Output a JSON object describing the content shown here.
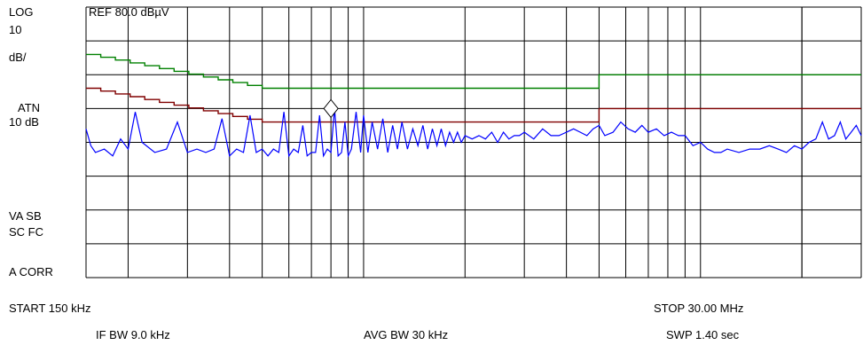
{
  "header": {
    "ref_level": "REF 80.0 dBµV"
  },
  "left_panel": {
    "scale_line1": "LOG",
    "scale_line2": "10",
    "scale_line3": "dB/",
    "atten_line1": "ATN",
    "atten_line2": "10 dB",
    "va_sb": "VA SB",
    "sc_fc": "SC FC",
    "a_corr": "A CORR"
  },
  "footer": {
    "start": "START 150 kHz",
    "stop": "STOP 30.00 MHz",
    "if_bw": "IF BW 9.0 kHz",
    "avg_bw": "AVG BW 30 kHz",
    "sweep": "SWP 1.40 sec"
  },
  "colors": {
    "trace": "#0000ff",
    "limit_upper": "#008000",
    "limit_lower": "#800000",
    "grid": "#000000"
  },
  "chart_data": {
    "type": "line",
    "title": "",
    "x_scale": "log",
    "x_unit": "MHz",
    "xlim": [
      0.15,
      30.0
    ],
    "y_unit": "dBµV",
    "ylim": [
      0,
      80
    ],
    "y_per_division": 10,
    "grid": true,
    "series": [
      {
        "role": "trace",
        "x": [
          0.15,
          0.155,
          0.16,
          0.17,
          0.18,
          0.19,
          0.2,
          0.21,
          0.22,
          0.24,
          0.26,
          0.28,
          0.3,
          0.32,
          0.34,
          0.36,
          0.38,
          0.4,
          0.42,
          0.44,
          0.46,
          0.48,
          0.5,
          0.52,
          0.54,
          0.56,
          0.58,
          0.6,
          0.62,
          0.64,
          0.66,
          0.68,
          0.7,
          0.72,
          0.74,
          0.76,
          0.78,
          0.8,
          0.82,
          0.84,
          0.86,
          0.88,
          0.9,
          0.92,
          0.95,
          0.98,
          1.0,
          1.03,
          1.06,
          1.1,
          1.14,
          1.18,
          1.22,
          1.26,
          1.3,
          1.35,
          1.4,
          1.45,
          1.5,
          1.55,
          1.6,
          1.65,
          1.7,
          1.75,
          1.8,
          1.85,
          1.9,
          1.95,
          2.0,
          2.1,
          2.2,
          2.3,
          2.4,
          2.5,
          2.6,
          2.7,
          2.8,
          2.9,
          3.0,
          3.2,
          3.4,
          3.6,
          3.8,
          4.0,
          4.2,
          4.4,
          4.6,
          4.8,
          5.0,
          5.2,
          5.5,
          5.8,
          6.1,
          6.4,
          6.7,
          7.0,
          7.4,
          7.8,
          8.2,
          8.6,
          9.0,
          9.5,
          10.0,
          10.5,
          11.0,
          11.5,
          12.0,
          13.0,
          14.0,
          15.0,
          16.0,
          17.0,
          18.0,
          19.0,
          20.0,
          21.0,
          22.0,
          23.0,
          24.0,
          25.0,
          26.0,
          27.0,
          28.0,
          29.0,
          30.0
        ],
        "y": [
          44,
          39,
          37,
          38,
          36,
          41,
          38,
          49,
          40,
          37,
          38,
          46,
          37,
          38,
          37,
          38,
          47,
          36,
          38,
          37,
          48,
          37,
          38,
          36,
          38,
          37,
          49,
          36,
          38,
          37,
          45,
          36,
          37,
          37,
          48,
          36,
          38,
          37,
          50,
          36,
          37,
          46,
          36,
          38,
          49,
          37,
          48,
          37,
          46,
          38,
          47,
          37,
          45,
          38,
          46,
          38,
          44,
          39,
          45,
          38,
          44,
          39,
          44,
          39,
          43,
          40,
          43,
          40,
          42,
          41,
          42,
          41,
          43,
          40,
          43,
          41,
          42,
          42,
          43,
          41,
          44,
          42,
          42,
          43,
          44,
          43,
          42,
          44,
          45,
          42,
          43,
          46,
          44,
          43,
          45,
          43,
          44,
          42,
          43,
          42,
          42,
          39,
          40,
          38,
          37,
          37,
          38,
          37,
          38,
          38,
          39,
          38,
          37,
          39,
          38,
          40,
          41,
          46,
          41,
          42,
          46,
          41,
          43,
          45,
          42
        ]
      },
      {
        "role": "limit_upper",
        "x": [
          0.15,
          0.5,
          0.5,
          5.0,
          5.0,
          30.0
        ],
        "y": [
          66,
          56,
          56,
          56,
          60,
          60
        ]
      },
      {
        "role": "limit_lower",
        "x": [
          0.15,
          0.5,
          0.5,
          5.0,
          5.0,
          30.0
        ],
        "y": [
          56,
          46,
          46,
          46,
          50,
          50
        ]
      }
    ],
    "marker": {
      "x": 0.8,
      "y": 50,
      "shape": "diamond"
    }
  }
}
